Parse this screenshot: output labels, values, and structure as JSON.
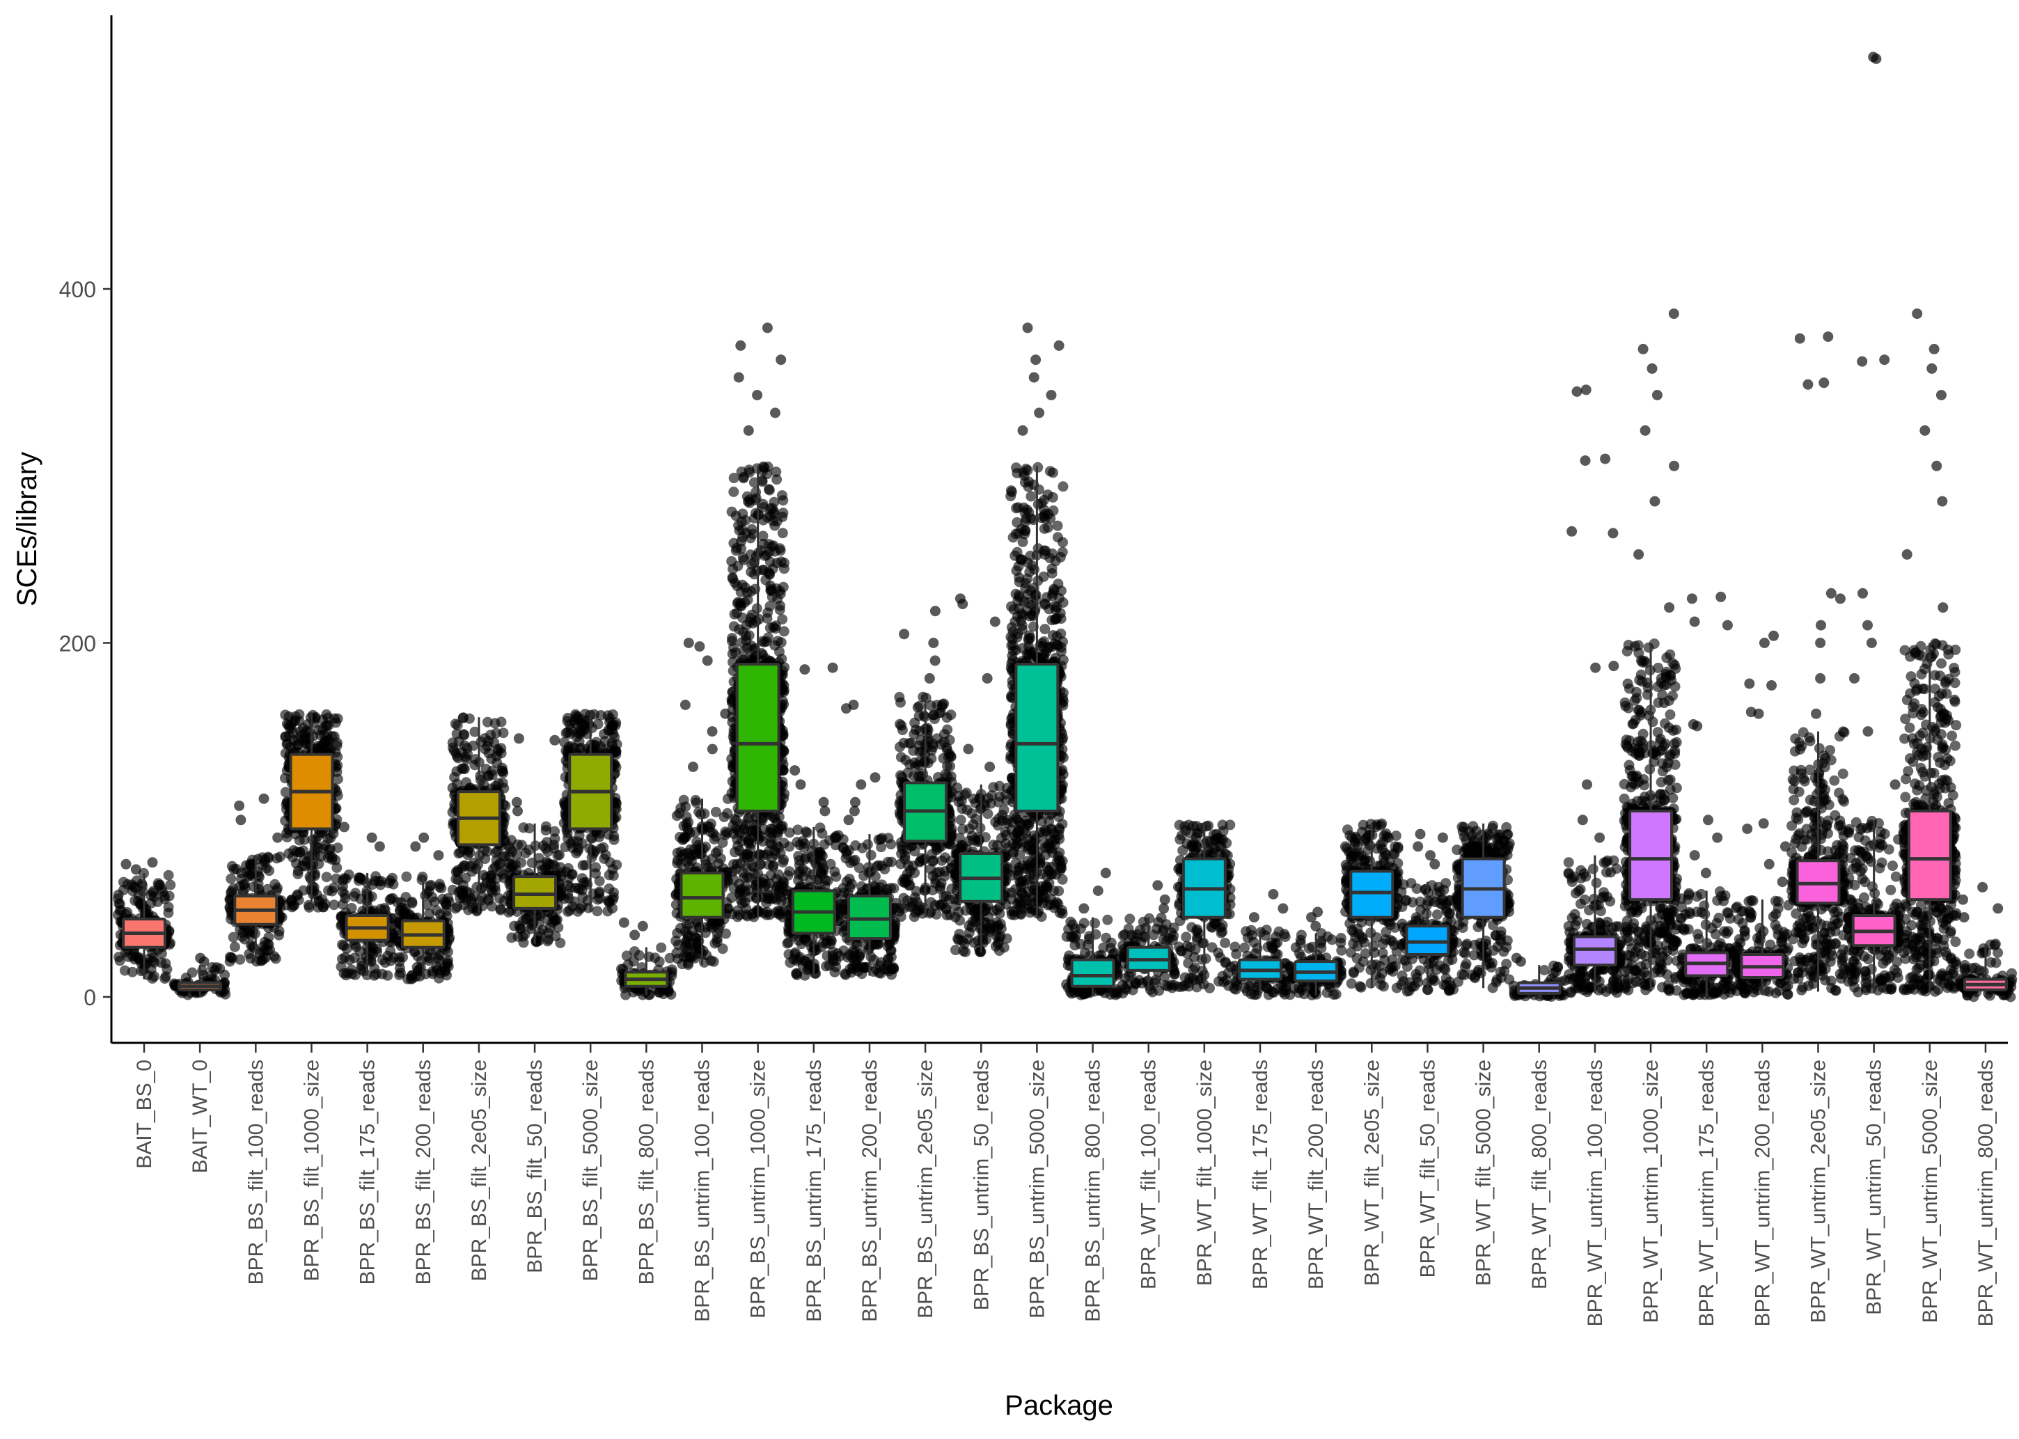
{
  "chart_data": {
    "type": "boxplot",
    "xlabel": "Package",
    "ylabel": "SCEs/library",
    "ylim": [
      -25,
      555
    ],
    "yticks": [
      0,
      200,
      400
    ],
    "grid": false,
    "legend": "none",
    "jitter_points": true,
    "categories": [
      "BAIT_BS_0",
      "BAIT_WT_0",
      "BPR_BS_filt_100_reads",
      "BPR_BS_filt_1000_size",
      "BPR_BS_filt_175_reads",
      "BPR_BS_filt_200_reads",
      "BPR_BS_filt_2e05_size",
      "BPR_BS_filt_50_reads",
      "BPR_BS_filt_5000_size",
      "BPR_BS_filt_800_reads",
      "BPR_BS_untrim_100_reads",
      "BPR_BS_untrim_1000_size",
      "BPR_BS_untrim_175_reads",
      "BPR_BS_untrim_200_reads",
      "BPR_BS_untrim_2e05_size",
      "BPR_BS_untrim_50_reads",
      "BPR_BS_untrim_5000_size",
      "BPR_BS_untrim_800_reads",
      "BPR_WT_filt_100_reads",
      "BPR_WT_filt_1000_size",
      "BPR_WT_filt_175_reads",
      "BPR_WT_filt_200_reads",
      "BPR_WT_filt_2e05_size",
      "BPR_WT_filt_50_reads",
      "BPR_WT_filt_5000_size",
      "BPR_WT_filt_800_reads",
      "BPR_WT_untrim_100_reads",
      "BPR_WT_untrim_1000_size",
      "BPR_WT_untrim_175_reads",
      "BPR_WT_untrim_200_reads",
      "BPR_WT_untrim_2e05_size",
      "BPR_WT_untrim_50_reads",
      "BPR_WT_untrim_5000_size",
      "BPR_WT_untrim_800_reads"
    ],
    "colors": [
      "#F8766D",
      "#F27D52",
      "#EA8331",
      "#DE8C00",
      "#D29200",
      "#C49A00",
      "#B49F00",
      "#A3A500",
      "#8FAA00",
      "#7AAE00",
      "#5EB300",
      "#2FB600",
      "#00B81F",
      "#00BB4E",
      "#00BD6A",
      "#00BF82",
      "#00C097",
      "#00C1AB",
      "#00C0BE",
      "#00BDD0",
      "#00BAE0",
      "#00B4EF",
      "#00ADFA",
      "#00A5FF",
      "#619CFF",
      "#8F91FF",
      "#B385FF",
      "#CF78FF",
      "#E36EF6",
      "#F066EA",
      "#FA62DB",
      "#FF61C9",
      "#FF65B3",
      "#FD6C9E"
    ],
    "stats": [
      {
        "q1": 28,
        "median": 36,
        "q3": 44,
        "min": 10,
        "max": 70
      },
      {
        "q1": 4,
        "median": 6,
        "q3": 8,
        "min": 1,
        "max": 18
      },
      {
        "q1": 41,
        "median": 49,
        "q3": 57,
        "min": 20,
        "max": 80
      },
      {
        "q1": 95,
        "median": 116,
        "q3": 137,
        "min": 50,
        "max": 160
      },
      {
        "q1": 32,
        "median": 39,
        "q3": 46,
        "min": 12,
        "max": 70
      },
      {
        "q1": 28,
        "median": 35,
        "q3": 43,
        "min": 10,
        "max": 68
      },
      {
        "q1": 86,
        "median": 101,
        "q3": 116,
        "min": 48,
        "max": 158
      },
      {
        "q1": 50,
        "median": 58,
        "q3": 68,
        "min": 30,
        "max": 98
      },
      {
        "q1": 95,
        "median": 116,
        "q3": 137,
        "min": 48,
        "max": 160
      },
      {
        "q1": 6,
        "median": 10,
        "q3": 14,
        "min": 1,
        "max": 28
      },
      {
        "q1": 45,
        "median": 56,
        "q3": 70,
        "min": 18,
        "max": 112
      },
      {
        "q1": 105,
        "median": 143,
        "q3": 188,
        "min": 45,
        "max": 300
      },
      {
        "q1": 36,
        "median": 48,
        "q3": 60,
        "min": 12,
        "max": 96
      },
      {
        "q1": 33,
        "median": 44,
        "q3": 57,
        "min": 12,
        "max": 92
      },
      {
        "q1": 88,
        "median": 105,
        "q3": 121,
        "min": 45,
        "max": 170
      },
      {
        "q1": 54,
        "median": 67,
        "q3": 81,
        "min": 25,
        "max": 120
      },
      {
        "q1": 105,
        "median": 143,
        "q3": 188,
        "min": 45,
        "max": 300
      },
      {
        "q1": 6,
        "median": 12,
        "q3": 21,
        "min": 1,
        "max": 45
      },
      {
        "q1": 15,
        "median": 21,
        "q3": 28,
        "min": 2,
        "max": 45
      },
      {
        "q1": 45,
        "median": 61,
        "q3": 78,
        "min": 5,
        "max": 98
      },
      {
        "q1": 10,
        "median": 15,
        "q3": 21,
        "min": 1,
        "max": 38
      },
      {
        "q1": 9,
        "median": 14,
        "q3": 20,
        "min": 1,
        "max": 36
      },
      {
        "q1": 45,
        "median": 59,
        "q3": 71,
        "min": 5,
        "max": 98
      },
      {
        "q1": 24,
        "median": 31,
        "q3": 40,
        "min": 3,
        "max": 65
      },
      {
        "q1": 45,
        "median": 61,
        "q3": 78,
        "min": 5,
        "max": 98
      },
      {
        "q1": 2,
        "median": 5,
        "q3": 8,
        "min": 0,
        "max": 18
      },
      {
        "q1": 18,
        "median": 27,
        "q3": 34,
        "min": 2,
        "max": 80
      },
      {
        "q1": 55,
        "median": 78,
        "q3": 105,
        "min": 3,
        "max": 200
      },
      {
        "q1": 12,
        "median": 19,
        "q3": 25,
        "min": 1,
        "max": 60
      },
      {
        "q1": 11,
        "median": 17,
        "q3": 24,
        "min": 1,
        "max": 55
      },
      {
        "q1": 53,
        "median": 64,
        "q3": 77,
        "min": 3,
        "max": 150
      },
      {
        "q1": 29,
        "median": 37,
        "q3": 46,
        "min": 2,
        "max": 100
      },
      {
        "q1": 55,
        "median": 78,
        "q3": 105,
        "min": 3,
        "max": 200
      },
      {
        "q1": 4,
        "median": 7,
        "q3": 10,
        "min": 0,
        "max": 30
      }
    ],
    "outliers": [
      [
        72,
        75,
        76
      ],
      [
        20,
        22
      ],
      [
        90,
        100,
        108,
        112
      ],
      [],
      [
        85,
        90,
        96
      ],
      [
        80,
        85,
        90
      ],
      [],
      [
        105,
        110,
        145,
        146
      ],
      [],
      [
        35,
        40,
        42
      ],
      [
        130,
        140,
        150,
        160,
        165,
        190,
        198,
        200
      ],
      [
        320,
        330,
        340,
        350,
        360,
        368,
        378
      ],
      [
        105,
        110,
        120,
        128,
        185,
        186
      ],
      [
        100,
        105,
        110,
        120,
        124,
        163,
        165
      ],
      [
        180,
        190,
        200,
        205,
        218
      ],
      [
        130,
        140,
        180,
        212,
        222,
        225
      ],
      [
        320,
        330,
        340,
        350,
        360,
        368,
        378
      ],
      [
        50,
        60,
        70
      ],
      [
        50,
        55,
        63
      ],
      [],
      [
        45,
        50,
        58
      ],
      [
        40,
        45,
        48
      ],
      [],
      [
        75,
        80,
        85,
        90,
        92
      ],
      [],
      [
        20,
        22
      ],
      [
        90,
        100,
        120,
        186,
        187,
        262,
        263,
        303,
        304,
        342,
        343
      ],
      [
        220,
        250,
        280,
        300,
        320,
        340,
        355,
        366,
        386
      ],
      [
        70,
        80,
        90,
        100,
        153,
        154,
        210,
        212,
        225,
        226
      ],
      [
        65,
        75,
        85,
        95,
        98,
        160,
        161,
        176,
        177,
        200,
        204
      ],
      [
        160,
        180,
        200,
        210,
        225,
        228,
        346,
        347,
        372,
        373
      ],
      [
        120,
        150,
        180,
        200,
        210,
        228,
        359,
        360,
        530,
        531
      ],
      [
        220,
        250,
        280,
        300,
        320,
        340,
        355,
        366,
        386
      ],
      [
        45,
        50,
        55,
        62
      ]
    ]
  }
}
